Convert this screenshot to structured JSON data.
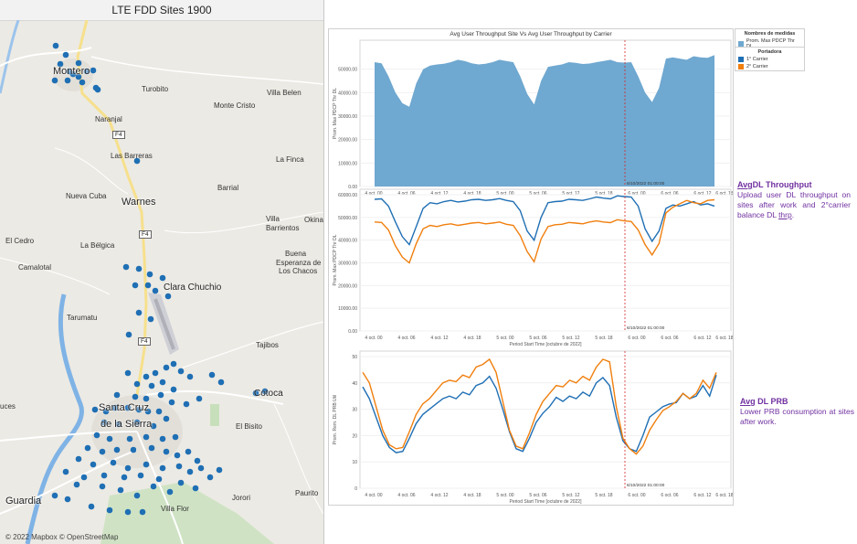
{
  "map": {
    "title": "LTE FDD Sites 1900",
    "credit": "© 2022 Mapbox © OpenStreetMap",
    "places": [
      {
        "name": "Montero",
        "size": "big"
      },
      {
        "name": "Turobito",
        "size": "small"
      },
      {
        "name": "Villa Belen",
        "size": "small"
      },
      {
        "name": "Monte Cristo",
        "size": "small"
      },
      {
        "name": "Naranjal",
        "size": "small"
      },
      {
        "name": "Las Barreras",
        "size": "small"
      },
      {
        "name": "La Finca",
        "size": "small"
      },
      {
        "name": "Warnes",
        "size": "big"
      },
      {
        "name": "Barrial",
        "size": "small"
      },
      {
        "name": "Nueva Cuba",
        "size": "small"
      },
      {
        "name": "Villa",
        "size": "small"
      },
      {
        "name": "Barrientos",
        "size": "small"
      },
      {
        "name": "Okina",
        "size": "small"
      },
      {
        "name": "El Cedro",
        "size": "small"
      },
      {
        "name": "La Bélgica",
        "size": "small"
      },
      {
        "name": "Buena",
        "size": "small"
      },
      {
        "name": "Esperanza de",
        "size": "small"
      },
      {
        "name": "Los Chacos",
        "size": "small"
      },
      {
        "name": "Camalotal",
        "size": "small"
      },
      {
        "name": "Clara Chuchio",
        "size": "mid"
      },
      {
        "name": "Tarumatu",
        "size": "small"
      },
      {
        "name": "Tajibos",
        "size": "small"
      },
      {
        "name": "Cotoca",
        "size": "mid"
      },
      {
        "name": "Santa Cruz",
        "size": "big"
      },
      {
        "name": "de la Sierra",
        "size": "big"
      },
      {
        "name": "El Bisito",
        "size": "small"
      },
      {
        "name": "uces",
        "size": "small"
      },
      {
        "name": "Guardia",
        "size": "big"
      },
      {
        "name": "Villa Flor",
        "size": "small"
      },
      {
        "name": "Jorori",
        "size": "small"
      },
      {
        "name": "Paurito",
        "size": "small"
      }
    ],
    "road_label": "F4",
    "site_color": "#1f6fb4"
  },
  "chart": {
    "title": "Avg User Throughput Site Vs Avg User Throughput by Carrier",
    "marker_label": "6/10/2022 01:00:00",
    "marker_color": "#d62728",
    "legend_measures": {
      "title": "Nombres de medidas",
      "item": "Prom. Max PDCP Thr DL",
      "color": "#6fa8d0"
    },
    "legend_carrier": {
      "title": "Portadora",
      "items": [
        {
          "label": "1° Carrier",
          "color": "#1f6fb4"
        },
        {
          "label": "2° Carrier",
          "color": "#f07f0e"
        }
      ]
    }
  },
  "chart_data": [
    {
      "type": "area",
      "ylabel": "Prom. Max PDCP Thr DL",
      "ylim": [
        0,
        60000
      ],
      "yticks": [
        "0.00",
        "10000.00",
        "20000.00",
        "30000.00",
        "40000.00",
        "50000.00"
      ],
      "x_ticks": [
        "4 oct. 00",
        "4 oct. 06",
        "4 oct. 12",
        "4 oct. 18",
        "5 oct. 00",
        "5 oct. 06",
        "5 oct. 12",
        "5 oct. 18",
        "6 oct. 00",
        "6 oct. 06",
        "6 oct. 12",
        "6 oct. 18"
      ],
      "series": [
        {
          "name": "Prom. Max PDCP Thr DL",
          "values": [
            53000,
            52500,
            47000,
            40000,
            35500,
            34000,
            44000,
            50000,
            51500,
            52000,
            52300,
            53000,
            54000,
            53500,
            52500,
            52000,
            52300,
            53000,
            54000,
            53500,
            53000,
            47000,
            39500,
            35000,
            45000,
            51000,
            51500,
            52000,
            53000,
            52700,
            52200,
            52400,
            53000,
            53500,
            54000,
            53000,
            52800,
            53000,
            47000,
            40000,
            36000,
            42000,
            54500,
            55000,
            54500,
            54000,
            55500,
            55000,
            54800,
            56000
          ]
        }
      ]
    },
    {
      "type": "line",
      "ylabel": "Prom. Max PDCP Thr DL",
      "xlabel": "Period Start Time [octubre de 2022]",
      "ylim": [
        0,
        60000
      ],
      "yticks": [
        "0.00",
        "10000.00",
        "20000.00",
        "30000.00",
        "40000.00",
        "50000.00",
        "60000.00"
      ],
      "x_ticks": [
        "4 oct. 00",
        "4 oct. 06",
        "4 oct. 12",
        "4 oct. 18",
        "5 oct. 00",
        "5 oct. 06",
        "5 oct. 12",
        "5 oct. 18",
        "6 oct. 00",
        "6 oct. 06",
        "6 oct. 12",
        "6 oct. 18"
      ],
      "series": [
        {
          "name": "1° Carrier",
          "values": [
            58000,
            58200,
            55000,
            48000,
            41500,
            38000,
            46000,
            54000,
            56500,
            56000,
            57000,
            57500,
            56800,
            57200,
            57800,
            58000,
            57500,
            57800,
            58300,
            57500,
            57000,
            53000,
            44000,
            40000,
            50000,
            56500,
            57000,
            57200,
            58000,
            57800,
            57500,
            58200,
            59000,
            58500,
            58200,
            59500,
            59200,
            59000,
            55000,
            45000,
            39500,
            44000,
            54000,
            55500,
            55000,
            56000,
            57000,
            55500,
            56000,
            55000
          ]
        },
        {
          "name": "2° Carrier",
          "values": [
            48000,
            47800,
            44500,
            37500,
            32500,
            30000,
            38500,
            45000,
            46500,
            46000,
            46800,
            47200,
            46500,
            47000,
            47500,
            47800,
            47200,
            47500,
            48000,
            47000,
            46500,
            42000,
            35000,
            30500,
            40500,
            46000,
            46800,
            47000,
            47800,
            47500,
            47200,
            48000,
            48500,
            48000,
            47700,
            49000,
            48500,
            48200,
            44500,
            38000,
            33500,
            38500,
            52000,
            54500,
            56000,
            57500,
            56500,
            56000,
            57500,
            57800
          ]
        }
      ]
    },
    {
      "type": "line",
      "ylabel": "Prom. Rem. DL PRB Util",
      "xlabel": "Period Start Time [octubre de 2022]",
      "ylim": [
        0,
        50
      ],
      "yticks": [
        "0",
        "10",
        "20",
        "30",
        "40",
        "50"
      ],
      "x_ticks": [
        "4 oct. 00",
        "4 oct. 06",
        "4 oct. 12",
        "4 oct. 18",
        "5 oct. 00",
        "5 oct. 06",
        "5 oct. 12",
        "5 oct. 18",
        "6 oct. 00",
        "6 oct. 06",
        "6 oct. 12",
        "6 oct. 18"
      ],
      "series": [
        {
          "name": "1° Carrier",
          "values": [
            38.5,
            34,
            27,
            20,
            15.5,
            13.5,
            14,
            19,
            24.5,
            28,
            30,
            32,
            34,
            35,
            34,
            36.5,
            35.5,
            39,
            40,
            42.5,
            38,
            30,
            21.5,
            15,
            14,
            19,
            25,
            28.5,
            31,
            34.5,
            33,
            35,
            34,
            36.5,
            35,
            40,
            42,
            39,
            27,
            18,
            15,
            14,
            20,
            27,
            29,
            31,
            32,
            32.5,
            36,
            34,
            35,
            39,
            35,
            43
          ]
        },
        {
          "name": "2° Carrier",
          "values": [
            44,
            40,
            31,
            22,
            16.5,
            15,
            15.5,
            21.5,
            28,
            32,
            34,
            37,
            40,
            41,
            40.5,
            43,
            42,
            46,
            47,
            49,
            44,
            33,
            22,
            16,
            15,
            21,
            28,
            33,
            36,
            39,
            38.5,
            41,
            40,
            42.5,
            41,
            46,
            49,
            48,
            31,
            19,
            15,
            13,
            16,
            22,
            26,
            29.5,
            31,
            33,
            36,
            34,
            36,
            41,
            38,
            44
          ]
        }
      ]
    }
  ],
  "notes": [
    {
      "title_prefix": "Avg",
      "title_rest": "DL  Throughput",
      "body": "Upload  user DL throughput  on sites after work and 2°carrier balance  DL ",
      "body_end": "thrp",
      "body_tail": "."
    },
    {
      "title_prefix": "Avg",
      "title_rest": " DL PRB",
      "body": "Lower PRB consumption  at sites after work."
    }
  ]
}
